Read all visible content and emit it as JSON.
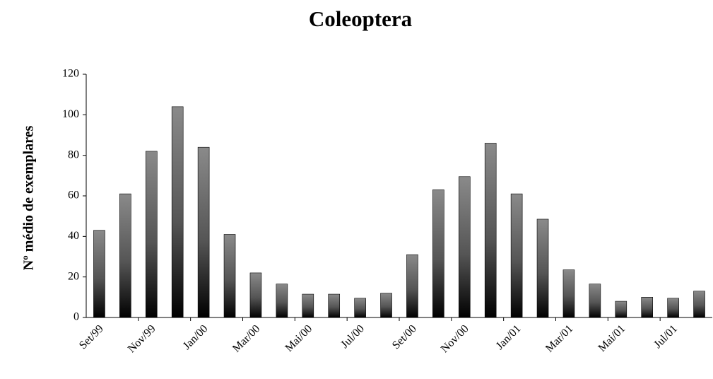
{
  "chart_data": {
    "type": "bar",
    "title": "Coleoptera",
    "y_label": "Nº médio de exemplares",
    "categories": [
      "Set/99",
      null,
      "Nov/99",
      null,
      "Jan/00",
      null,
      "Mar/00",
      null,
      "Mai/00",
      null,
      "Jul/00",
      null,
      "Set/00",
      null,
      "Nov/00",
      null,
      "Jan/01",
      null,
      "Mar/01",
      null,
      "Mai/01",
      null,
      "Jul/01",
      null
    ],
    "values": [
      43,
      61,
      82,
      104,
      84,
      41,
      22,
      16.5,
      11.5,
      11.5,
      9.5,
      12,
      31,
      63,
      69.5,
      86,
      61,
      48.5,
      23.5,
      16.5,
      8,
      10,
      9.5,
      13
    ],
    "ylim": [
      0,
      120
    ],
    "yticks": [
      0,
      20,
      40,
      60,
      80,
      100,
      120
    ],
    "grid": false
  }
}
